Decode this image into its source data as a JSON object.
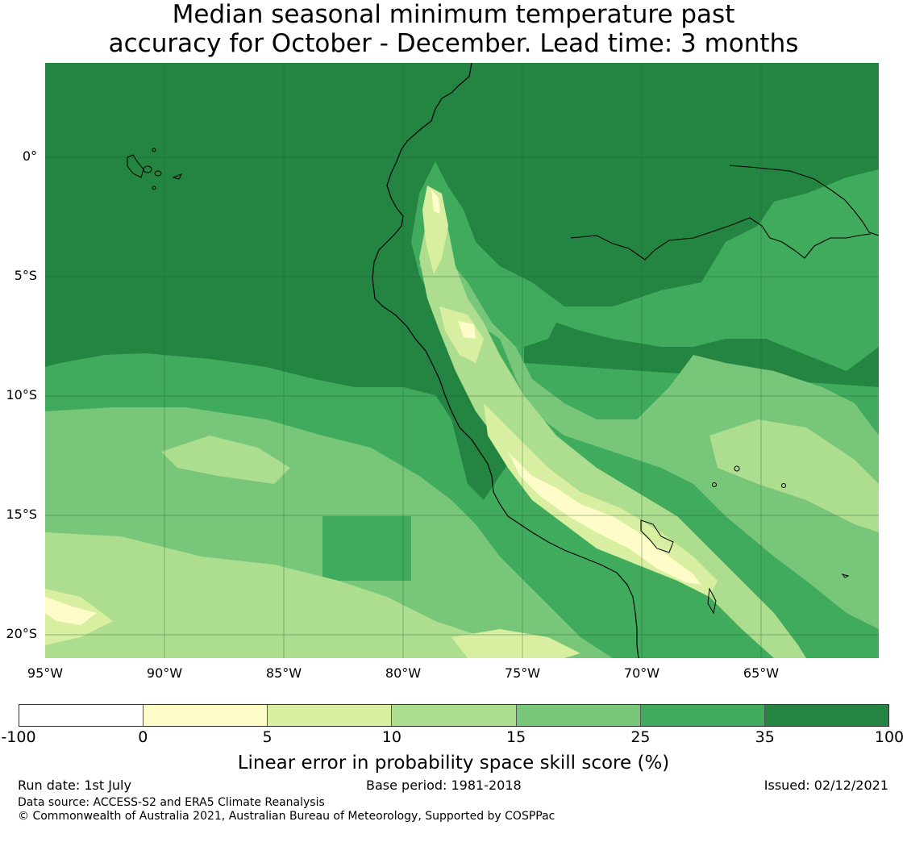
{
  "title": {
    "line1": "Median seasonal minimum temperature past",
    "line2": "accuracy for October - December. Lead time: 3 months"
  },
  "map": {
    "lat_labels": [
      "0°",
      "5°S",
      "10°S",
      "15°S",
      "20°S"
    ],
    "lon_labels": [
      "95°W",
      "90°W",
      "85°W",
      "80°W",
      "75°W",
      "70°W",
      "65°W"
    ],
    "background_color": "#248543"
  },
  "colorbar": {
    "ticks": [
      "-100",
      "0",
      "5",
      "10",
      "15",
      "25",
      "35",
      "100"
    ],
    "colors": [
      "#ffffff",
      "#fefdc9",
      "#d8eea0",
      "#addd8e",
      "#78c679",
      "#41ab5d",
      "#248543"
    ],
    "label": "Linear error in probability space skill score (%)"
  },
  "footer": {
    "run_date": "Run date: 1st July",
    "base_period": "Base period: 1981-2018",
    "issued": "Issued: 02/12/2021",
    "data_source": "Data source: ACCESS-S2 and ERA5 Climate Reanalysis",
    "copyright": "© Commonwealth of Australia 2021, Australian Bureau of Meteorology, Supported by COSPPac"
  }
}
